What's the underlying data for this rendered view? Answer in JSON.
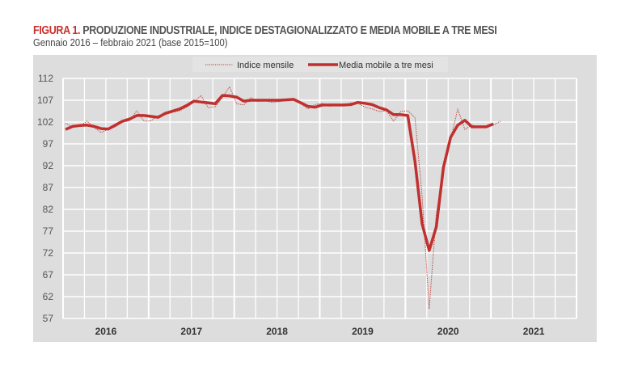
{
  "title_prefix": "FIGURA 1.",
  "title": "PRODUZIONE INDUSTRIALE, INDICE DESTAGIONALIZZATO E MEDIA MOBILE A TRE MESI",
  "subtitle": "Gennaio 2016 – febbraio 2021 (base 2015=100)",
  "chart_data": {
    "type": "line",
    "x_start": "2016-01",
    "x_frequency": "monthly",
    "xlim": [
      "2016-01",
      "2021-12"
    ],
    "x_tick_labels": [
      "2016",
      "2017",
      "2018",
      "2019",
      "2020",
      "2021"
    ],
    "ylim": [
      57,
      112
    ],
    "y_ticks": [
      57,
      62,
      67,
      72,
      77,
      82,
      87,
      92,
      97,
      102,
      107,
      112
    ],
    "grid": true,
    "legend_position": "top",
    "series": [
      {
        "name": "Indice mensile",
        "style": "dotted",
        "color": "#b8403c",
        "values": [
          101.7,
          100.9,
          101.0,
          102.2,
          100.8,
          99.6,
          100.4,
          100.9,
          102.0,
          102.3,
          104.6,
          102.2,
          102.3,
          103.5,
          103.7,
          104.2,
          104.6,
          105.4,
          106.5,
          108.1,
          105.3,
          105.5,
          107.6,
          110.1,
          106.2,
          105.9,
          107.6,
          106.7,
          106.9,
          106.5,
          106.7,
          106.9,
          107.2,
          106.2,
          105.0,
          106.0,
          106.3,
          105.6,
          105.9,
          105.7,
          106.4,
          106.3,
          105.4,
          105.0,
          104.4,
          104.6,
          102.2,
          104.4,
          104.6,
          103.0,
          85.0,
          59.2,
          81.0,
          91.0,
          98.0,
          105.0,
          100.3,
          101.3,
          100.9,
          100.7,
          101.3,
          102.2
        ]
      },
      {
        "name": "Media mobile a tre mesi",
        "style": "solid",
        "color": "#c0302f",
        "values": [
          100.3,
          101.0,
          101.2,
          101.3,
          101.0,
          100.5,
          100.4,
          101.3,
          102.2,
          102.7,
          103.5,
          103.5,
          103.3,
          103.1,
          104.0,
          104.5,
          105.0,
          105.8,
          106.8,
          106.6,
          106.4,
          106.2,
          108.1,
          108.0,
          107.7,
          106.8,
          107.0,
          107.0,
          107.0,
          107.0,
          107.0,
          107.1,
          107.2,
          106.4,
          105.6,
          105.4,
          105.9,
          105.9,
          105.9,
          105.9,
          106.0,
          106.5,
          106.3,
          106.0,
          105.3,
          104.8,
          103.7,
          103.7,
          103.5,
          93.0,
          78.7,
          72.6,
          78.0,
          91.6,
          98.5,
          101.3,
          102.4,
          100.9,
          100.9,
          100.9,
          101.6
        ]
      }
    ]
  }
}
